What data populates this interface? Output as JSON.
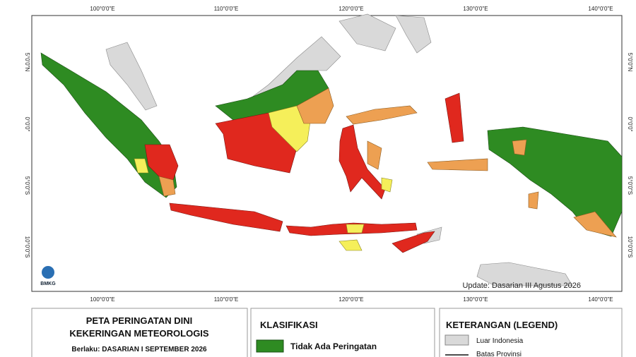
{
  "map": {
    "longitude_labels": [
      "100°0'0\"E",
      "110°0'0\"E",
      "120°0'0\"E",
      "130°0'0\"E",
      "140°0'0\"E"
    ],
    "latitude_labels": [
      "5°0'0\"N",
      "0°0'0\"",
      "5°0'0\"S",
      "10°0'0\"S"
    ],
    "update_note": "Update: Dasarian III Agustus 2026",
    "logo_text": "BMKG"
  },
  "title_panel": {
    "title_line1": "PETA PERINGATAN DINI",
    "title_line2": "KEKERINGAN METEOROLOGIS",
    "validity": "Berlaku: DASARIAN I SEPTEMBER 2026"
  },
  "classification": {
    "heading": "KLASIFIKASI",
    "items": [
      {
        "label": "Tidak Ada Peringatan"
      }
    ]
  },
  "legend": {
    "heading": "KETERANGAN (LEGEND)",
    "items": [
      {
        "label": "Luar Indonesia"
      },
      {
        "label": "Batas Provinsi"
      }
    ]
  }
}
